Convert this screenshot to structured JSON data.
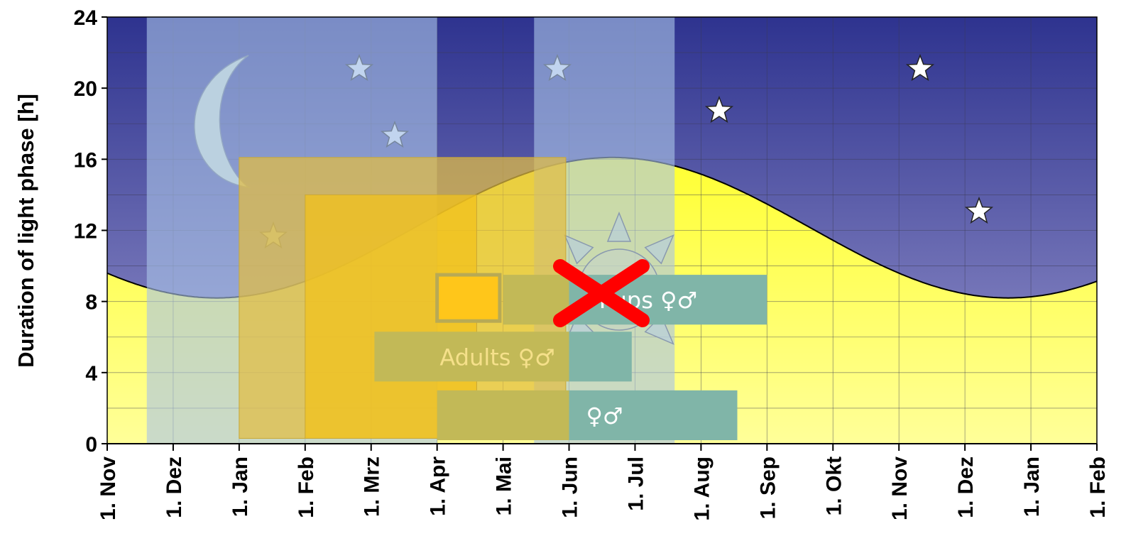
{
  "chart_data": {
    "type": "area",
    "ylabel": "Duration of light phase [h]",
    "ylim": [
      0,
      24
    ],
    "yticks": [
      0,
      4,
      8,
      12,
      16,
      20,
      24
    ],
    "x_range": [
      "1. Nov",
      "1. Feb"
    ],
    "categories": [
      "1. Nov",
      "1. Dez",
      "1. Jan",
      "1. Feb",
      "1. Mrz",
      "1. Apr",
      "1. Mai",
      "1. Jun",
      "1. Jul",
      "1. Aug",
      "1. Sep",
      "1. Okt",
      "1. Nov",
      "1. Dez",
      "1. Jan",
      "1. Feb"
    ],
    "series": [
      {
        "x": [
          "1. Nov",
          "1. Dez",
          "1. Jan",
          "1. Feb",
          "1. Mrz",
          "1. Apr",
          "1. Mai",
          "1. Jun",
          "1. Jul",
          "1. Aug",
          "1. Sep",
          "1. Okt",
          "1. Nov",
          "1. Dez",
          "1. Jan",
          "1. Feb"
        ],
        "values": [
          9.9,
          8.6,
          8.3,
          9.4,
          11.2,
          13.1,
          14.8,
          15.9,
          16.0,
          15.2,
          13.5,
          11.5,
          9.8,
          8.5,
          8.3,
          9.4
        ],
        "peak": {
          "x": "21. Jun",
          "value": 16.1
        },
        "trough": {
          "x": "21. Dez",
          "value": 8.2
        }
      }
    ],
    "shaded_periods": [
      {
        "start": "1. Dez",
        "end": "1. Apr",
        "color": "#A9C4E6"
      },
      {
        "start": "1. Jun",
        "end": "1. Aug",
        "color": "#A9C4E6"
      }
    ],
    "boxes": [
      {
        "start": "1. Jan",
        "end": "1. Jun",
        "y0": 0.3,
        "y1": 16.1,
        "color": "#E2BC42"
      },
      {
        "start": "1. Feb",
        "end": "1. Mai",
        "y0": 0.3,
        "y1": 14.0,
        "color": "#F2C11C"
      }
    ],
    "stage_bars": [
      {
        "label": "Pups ♀♂",
        "start": "1. Apr",
        "end": "1. Sep",
        "y0": 6.7,
        "y1": 9.5
      },
      {
        "label": "Adults ♀♂",
        "start": "1. Mrz",
        "end": "1. Jul",
        "y0": 3.5,
        "y1": 6.3
      },
      {
        "label": "♀♂",
        "start": "1. Apr",
        "end": "1. Aug",
        "y0": 0.2,
        "y1": 3.0
      }
    ],
    "colors": {
      "night_top": "#2E338F",
      "night_bottom": "#9A98CE",
      "day_top": "#FFFF33",
      "day_bottom": "#FFFF99",
      "bar_olive": "#C2B957",
      "bar_teal": "#80B5A8",
      "cross": "#FF0000",
      "moon": "#D8E8D6"
    },
    "icons": [
      "moon-icon",
      "star-icon",
      "sun-icon",
      "red-cross-icon"
    ]
  }
}
